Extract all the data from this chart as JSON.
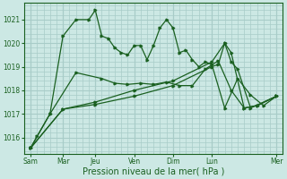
{
  "xlabel": "Pression niveau de la mer( hPa )",
  "bg_color": "#cce8e4",
  "grid_color": "#a8ccc8",
  "line_color": "#1a6020",
  "ylim": [
    1015.3,
    1021.7
  ],
  "yticks": [
    1016,
    1017,
    1018,
    1019,
    1020,
    1021
  ],
  "xlim": [
    -0.5,
    19.5
  ],
  "vline_major": [
    0,
    2.5,
    5,
    8,
    11,
    14,
    19
  ],
  "vline_labels": [
    "Sam",
    "Mar",
    "Jeu",
    "Ven",
    "Dim",
    "Lun",
    "Mer"
  ],
  "vline_minor_step": 0.5,
  "hgrid_minor_step": 0.2,
  "series1_x": [
    0,
    0.5,
    1.5,
    2.5,
    3.5,
    4.5,
    5,
    5.5,
    6,
    6.5,
    7,
    7.5,
    8,
    8.5,
    9,
    9.5,
    10,
    10.5,
    11,
    11.5,
    12,
    12.5,
    13,
    13.5,
    14,
    15,
    16,
    17,
    18,
    19
  ],
  "series1_y": [
    1015.55,
    1016.05,
    1017.0,
    1020.3,
    1021.0,
    1021.0,
    1021.4,
    1020.3,
    1020.2,
    1019.8,
    1019.6,
    1019.5,
    1019.9,
    1019.9,
    1019.3,
    1019.9,
    1020.65,
    1021.0,
    1020.65,
    1019.6,
    1019.7,
    1019.3,
    1019.0,
    1019.2,
    1019.1,
    1017.25,
    1018.5,
    1017.8,
    1017.35,
    1017.75
  ],
  "series2_x": [
    0,
    1.5,
    3.5,
    5.5,
    6.5,
    7.5,
    8.5,
    9.5,
    10.5,
    11.5,
    12.5,
    13.5,
    14.5,
    15.5,
    16.5,
    17.5,
    19
  ],
  "series2_y": [
    1015.55,
    1017.0,
    1018.75,
    1018.5,
    1018.3,
    1018.25,
    1018.3,
    1018.25,
    1018.35,
    1018.2,
    1018.2,
    1018.9,
    1019.25,
    1018.0,
    1017.25,
    1017.35,
    1017.75
  ],
  "series3_x": [
    0,
    2.5,
    5,
    8,
    11,
    14,
    14.5,
    15,
    15.5,
    16,
    17,
    19
  ],
  "series3_y": [
    1015.55,
    1017.2,
    1017.4,
    1017.75,
    1018.2,
    1019.0,
    1019.1,
    1020.0,
    1019.2,
    1018.9,
    1017.25,
    1017.75
  ],
  "series4_x": [
    0,
    2.5,
    5,
    8,
    11,
    14,
    15,
    15.5,
    16.5,
    17.5,
    19
  ],
  "series4_y": [
    1015.55,
    1017.2,
    1017.5,
    1018.0,
    1018.4,
    1019.2,
    1020.0,
    1019.6,
    1017.25,
    1017.35,
    1017.75
  ],
  "figsize": [
    3.2,
    2.0
  ],
  "dpi": 100
}
